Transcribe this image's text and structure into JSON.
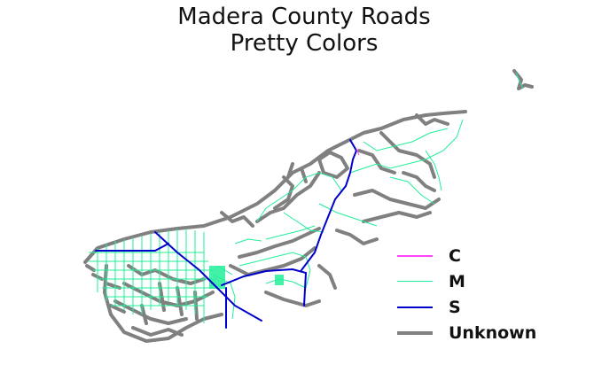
{
  "title": {
    "line1": "Madera County Roads",
    "line2": "Pretty Colors"
  },
  "legend": {
    "items": [
      {
        "label": "C",
        "color": "#ff44ff",
        "width": "thin"
      },
      {
        "label": "M",
        "color": "#22ee99",
        "width": "thin"
      },
      {
        "label": "S",
        "color": "#0000cc",
        "width": "medium"
      },
      {
        "label": "Unknown",
        "color": "#808080",
        "width": "thick"
      }
    ]
  },
  "colors": {
    "C": "#ff44ff",
    "M": "#22ee99",
    "S": "#0000cc",
    "Unknown": "#808080",
    "background": "#ffffff"
  }
}
